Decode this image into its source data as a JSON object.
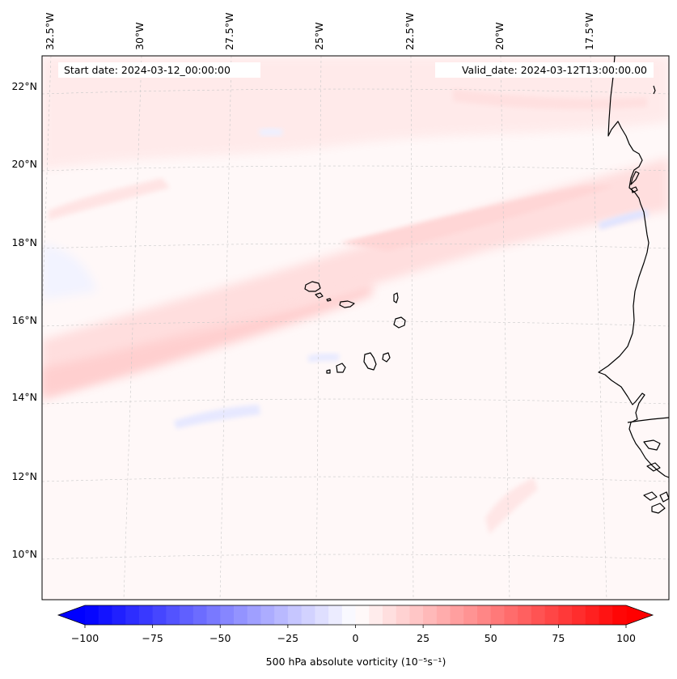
{
  "map": {
    "start_date_text": "Start date: 2024-03-12_00:00:00",
    "valid_date_text": "Valid_date: 2024-03-12T13:00:00.00",
    "longitude_labels": [
      "32.5°W",
      "30°W",
      "27.5°W",
      "25°W",
      "22.5°W",
      "20°W",
      "17.5°W"
    ],
    "latitude_labels": [
      "22°N",
      "20°N",
      "18°N",
      "16°N",
      "14°N",
      "12°N",
      "10°N"
    ],
    "field": "500 hPa absolute vorticity",
    "coastline_color": "#000000",
    "gridline_color": "#c8c8c8"
  },
  "colorbar": {
    "label": "500 hPa absolute vorticity (10⁻⁵s⁻¹)",
    "ticks": [
      "−100",
      "−75",
      "−50",
      "−25",
      "0",
      "25",
      "50",
      "75",
      "100"
    ],
    "min": -100,
    "max": 100,
    "low_color": "#0000ff",
    "mid_color": "#ffffff",
    "high_color": "#ff0000"
  }
}
